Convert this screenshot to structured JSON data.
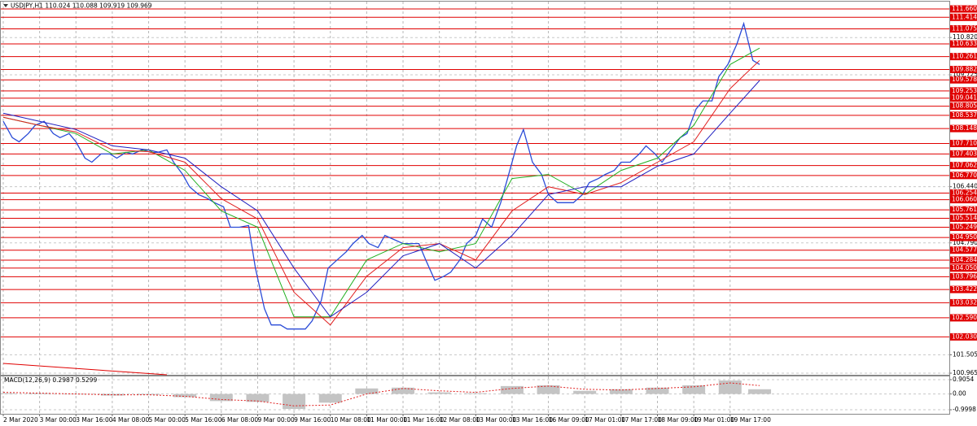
{
  "chart_data": [
    {
      "type": "line",
      "title": "USDJPY,H1  110.024 110.088 109.919 109.969",
      "xlim": [
        -1.43,
        416.5
      ],
      "xticks": [
        {
          "value": 0,
          "label": "2 Mar 2020"
        },
        {
          "value": 16,
          "label": "3 Mar 00:00"
        },
        {
          "value": 32,
          "label": "3 Mar 16:00"
        },
        {
          "value": 48,
          "label": "4 Mar 08:00"
        },
        {
          "value": 64,
          "label": "5 Mar 00:00"
        },
        {
          "value": 80,
          "label": "5 Mar 16:00"
        },
        {
          "value": 96,
          "label": "6 Mar 08:00"
        },
        {
          "value": 112,
          "label": "9 Mar 00:00"
        },
        {
          "value": 128,
          "label": "9 Mar 16:00"
        },
        {
          "value": 144,
          "label": "10 Mar 08:00"
        },
        {
          "value": 160,
          "label": "11 Mar 00:00"
        },
        {
          "value": 176,
          "label": "11 Mar 16:00"
        },
        {
          "value": 192,
          "label": "12 Mar 08:00"
        },
        {
          "value": 208,
          "label": "13 Mar 00:00"
        },
        {
          "value": 224,
          "label": "13 Mar 16:00"
        },
        {
          "value": 240,
          "label": "16 Mar 09:00"
        },
        {
          "value": 256,
          "label": "17 Mar 01:00"
        },
        {
          "value": 272,
          "label": "17 Mar 17:00"
        },
        {
          "value": 288,
          "label": "18 Mar 09:00"
        },
        {
          "value": 304,
          "label": "19 Mar 01:00"
        },
        {
          "value": 320,
          "label": "19 Mar 17:00"
        }
      ],
      "ylim": [
        100.917,
        111.875
      ],
      "yticks": [
        {
          "value": 110.82,
          "label": "110.820"
        },
        109.725,
        {
          "value": 106.44,
          "label": "106.440"
        },
        {
          "value": 104.79,
          "label": "104.790"
        },
        101.505,
        100.965
      ],
      "grid": true,
      "series": [
        {
          "color": "#2a4bd7",
          "x": [
            0,
            4,
            7,
            11,
            14,
            18,
            22,
            25,
            29,
            32,
            36,
            39,
            43,
            47,
            50,
            54,
            57,
            61,
            65,
            68,
            72,
            75,
            79,
            82,
            86,
            90,
            93,
            97,
            100,
            104,
            108,
            111,
            115,
            118,
            122,
            125,
            129,
            133,
            136,
            140,
            143,
            147,
            151,
            154,
            158,
            161,
            165,
            168,
            172,
            176,
            179,
            183,
            186,
            190,
            194,
            197,
            201,
            204,
            208,
            211,
            215,
            219,
            222,
            226,
            229,
            233,
            237,
            240,
            244,
            247,
            251,
            255,
            258,
            262,
            265,
            269,
            272,
            276,
            280,
            283,
            287,
            290,
            294,
            298,
            301,
            305,
            308,
            312,
            315,
            319,
            323,
            326,
            330,
            333
          ],
          "values": [
            108.36,
            107.88,
            107.76,
            108.0,
            108.24,
            108.36,
            108.0,
            107.88,
            108.0,
            107.76,
            107.28,
            107.16,
            107.4,
            107.4,
            107.28,
            107.45,
            107.4,
            107.52,
            107.45,
            107.45,
            107.52,
            107.16,
            106.8,
            106.44,
            106.21,
            106.09,
            105.97,
            105.85,
            105.25,
            105.25,
            105.3,
            104.05,
            102.86,
            102.38,
            102.38,
            102.26,
            102.26,
            102.26,
            102.5,
            103.1,
            104.05,
            104.29,
            104.53,
            104.77,
            105.01,
            104.77,
            104.65,
            105.01,
            104.89,
            104.77,
            104.77,
            104.77,
            104.29,
            103.69,
            103.81,
            103.93,
            104.29,
            104.77,
            105.01,
            105.49,
            105.25,
            105.97,
            106.68,
            107.64,
            108.12,
            107.16,
            106.8,
            106.21,
            105.97,
            105.97,
            105.97,
            106.21,
            106.56,
            106.68,
            106.8,
            106.92,
            107.16,
            107.16,
            107.4,
            107.64,
            107.4,
            107.16,
            107.52,
            107.88,
            108.0,
            108.72,
            108.96,
            108.96,
            109.67,
            110.03,
            110.63,
            111.23,
            110.15,
            110.03
          ]
        },
        {
          "color": "#22b022",
          "x": [
            0,
            16,
            32,
            48,
            64,
            80,
            96,
            112,
            128,
            144,
            160,
            176,
            192,
            208,
            224,
            240,
            256,
            272,
            288,
            304,
            320,
            333
          ],
          "values": [
            108.48,
            108.24,
            108.0,
            107.4,
            107.52,
            106.92,
            105.73,
            105.25,
            102.62,
            102.62,
            104.29,
            104.77,
            104.53,
            104.77,
            106.68,
            106.8,
            106.21,
            106.92,
            107.28,
            108.24,
            110.03,
            110.51
          ]
        },
        {
          "color": "#e02020",
          "x": [
            0,
            16,
            32,
            48,
            64,
            80,
            96,
            112,
            128,
            144,
            160,
            176,
            192,
            208,
            224,
            240,
            256,
            272,
            288,
            304,
            320,
            333
          ],
          "values": [
            108.48,
            108.24,
            108.05,
            107.52,
            107.47,
            107.16,
            106.09,
            105.49,
            103.34,
            102.38,
            103.81,
            104.65,
            104.77,
            104.29,
            105.73,
            106.44,
            106.21,
            106.56,
            107.16,
            107.76,
            109.32,
            110.15
          ]
        },
        {
          "color": "#2020c0",
          "x": [
            0,
            16,
            32,
            48,
            64,
            80,
            96,
            112,
            128,
            144,
            160,
            176,
            192,
            208,
            224,
            240,
            256,
            272,
            288,
            304,
            320,
            333
          ],
          "values": [
            108.6,
            108.36,
            108.12,
            107.64,
            107.52,
            107.28,
            106.44,
            105.73,
            104.05,
            102.62,
            103.34,
            104.41,
            104.77,
            104.05,
            105.01,
            106.21,
            106.44,
            106.44,
            107.04,
            107.4,
            108.6,
            109.56
          ]
        }
      ],
      "levels": {
        "color": "#e00000",
        "values": [
          111.66,
          111.414,
          111.075,
          110.633,
          110.261,
          109.882,
          109.578,
          109.253,
          109.041,
          108.805,
          108.537,
          108.148,
          107.71,
          107.403,
          107.062,
          106.77,
          106.254,
          106.06,
          105.761,
          105.514,
          105.249,
          104.95,
          104.577,
          104.284,
          104.05,
          103.796,
          103.422,
          103.032,
          102.59,
          102.03
        ],
        "value_labels": [
          "111.660",
          "111.414",
          "111.075",
          "110.633",
          "110.261",
          "109.882",
          "109.578",
          "109.253",
          "109.041",
          "108.805",
          "108.537",
          "108.148",
          "107.710",
          "107.403",
          "107.062",
          "106.770",
          "106.254",
          "106.060",
          "105.761",
          "105.514",
          "105.249",
          "104.950",
          "104.577",
          "104.284",
          "104.050",
          "103.796",
          "103.422",
          "103.032",
          "102.590",
          "102.030"
        ]
      }
    },
    {
      "type": "bar",
      "title": "MACD(12,26,9) 0.2987 0.5299",
      "xlim": [
        -1.43,
        416.5
      ],
      "ylim": [
        -1.256,
        1.111
      ],
      "yticks": [
        0.9054,
        {
          "value": 0,
          "label": "0.00"
        },
        -0.9998
      ],
      "grid": true,
      "series": [
        {
          "color": "#c4c4c4",
          "style": "bar",
          "x": [
            0,
            16,
            32,
            48,
            64,
            80,
            96,
            112,
            128,
            144,
            160,
            176,
            192,
            208,
            224,
            240,
            256,
            272,
            288,
            304,
            320,
            333
          ],
          "values": [
            0.05,
            0.05,
            0.0,
            -0.1,
            -0.05,
            -0.2,
            -0.45,
            -0.5,
            -0.95,
            -0.55,
            0.35,
            0.4,
            0.1,
            0.05,
            0.5,
            0.55,
            0.2,
            0.3,
            0.4,
            0.55,
            0.85,
            0.2987
          ]
        },
        {
          "color": "#e02020",
          "style": "dotted",
          "x": [
            0,
            16,
            32,
            48,
            64,
            80,
            96,
            112,
            128,
            144,
            160,
            176,
            192,
            208,
            224,
            240,
            256,
            272,
            288,
            304,
            320,
            333
          ],
          "values": [
            0.1,
            0.05,
            0.0,
            -0.05,
            -0.05,
            -0.15,
            -0.35,
            -0.45,
            -0.75,
            -0.7,
            0.0,
            0.35,
            0.2,
            0.1,
            0.35,
            0.5,
            0.3,
            0.25,
            0.35,
            0.45,
            0.7,
            0.5299
          ]
        }
      ]
    }
  ]
}
